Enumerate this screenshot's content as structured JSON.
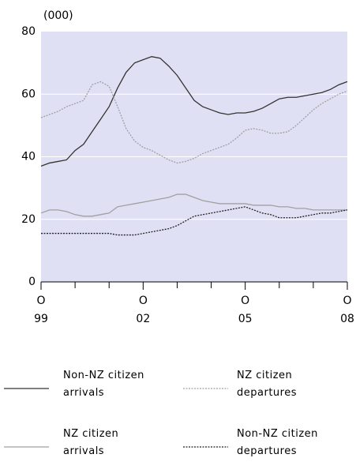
{
  "chart_data": {
    "type": "line",
    "ylabel": "(000)",
    "x": [
      1999.75,
      2000,
      2000.25,
      2000.5,
      2000.75,
      2001,
      2001.25,
      2001.5,
      2001.75,
      2002,
      2002.25,
      2002.5,
      2002.75,
      2003,
      2003.25,
      2003.5,
      2003.75,
      2004,
      2004.25,
      2004.5,
      2004.75,
      2005,
      2005.25,
      2005.5,
      2005.75,
      2006,
      2006.25,
      2006.5,
      2006.75,
      2007,
      2007.25,
      2007.5,
      2007.75,
      2008,
      2008.25,
      2008.5,
      2008.75
    ],
    "series": [
      {
        "name": "Non-NZ citizen arrivals",
        "color": "#333333",
        "line_style": "solid",
        "values": [
          37,
          38,
          38.5,
          39,
          42,
          44,
          48,
          52,
          56,
          62,
          67,
          70,
          71,
          72,
          71.5,
          69,
          66,
          62,
          58,
          56,
          55,
          54,
          53.5,
          54,
          54,
          54.5,
          55.5,
          57,
          58.5,
          59,
          59,
          59.5,
          60,
          60.5,
          61.5,
          63,
          64
        ]
      },
      {
        "name": "NZ citizen departures",
        "color": "#a0a0a0",
        "line_style": "dotted",
        "values": [
          52.5,
          53.5,
          54.5,
          56,
          57,
          58,
          63,
          64,
          62.5,
          56,
          49,
          45,
          43,
          42,
          40.5,
          39,
          38,
          38.5,
          39.5,
          41,
          42,
          43,
          44,
          46,
          48.5,
          49,
          48.5,
          47.5,
          47.5,
          48,
          50,
          52.5,
          55,
          57,
          58.5,
          60,
          61
        ]
      },
      {
        "name": "NZ citizen arrivals",
        "color": "#a0a0a0",
        "line_style": "solid",
        "values": [
          22,
          23,
          23,
          22.5,
          21.5,
          21,
          21,
          21.5,
          22,
          24,
          24.5,
          25,
          25.5,
          26,
          26.5,
          27,
          28,
          28,
          27,
          26,
          25.5,
          25,
          25,
          25,
          25,
          24.5,
          24.5,
          24.5,
          24,
          24,
          23.5,
          23.5,
          23,
          23,
          23,
          23,
          23
        ]
      },
      {
        "name": "Non-NZ citizen departures",
        "color": "#222222",
        "line_style": "dotted",
        "values": [
          15.5,
          15.5,
          15.5,
          15.5,
          15.5,
          15.5,
          15.5,
          15.5,
          15.5,
          15,
          15,
          15,
          15.5,
          16,
          16.5,
          17,
          18,
          19.5,
          21,
          21.5,
          22,
          22.5,
          23,
          23.5,
          24,
          23,
          22,
          21.5,
          20.5,
          20.5,
          20.5,
          21,
          21.5,
          22,
          22,
          22.5,
          23
        ]
      }
    ],
    "xlim": [
      1999.75,
      2008.75
    ],
    "xticks": [
      {
        "value": 1999.75,
        "label": "O\n99"
      },
      {
        "value": 2002.75,
        "label": "O\n02"
      },
      {
        "value": 2005.75,
        "label": "O\n05"
      },
      {
        "value": 2008.75,
        "label": "O\n08"
      }
    ],
    "xminor_ticks": [
      2000.75,
      2001.75,
      2003.75,
      2004.75,
      2006.75,
      2007.75
    ],
    "ylim": [
      0,
      80
    ],
    "yticks": [
      0,
      20,
      40,
      60,
      80
    ],
    "grid": true,
    "background": "#e0e0f4",
    "legend_position": "bottom"
  }
}
